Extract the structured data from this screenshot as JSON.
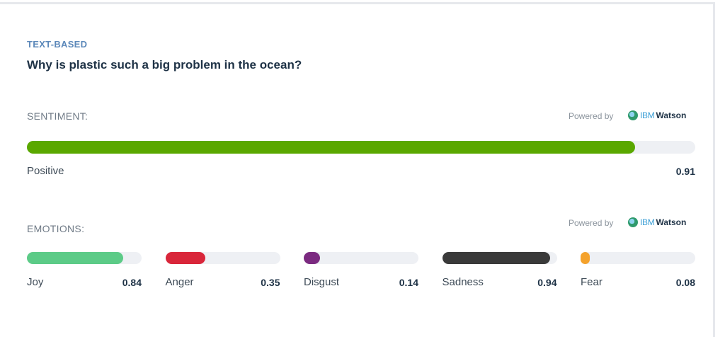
{
  "header": {
    "label": "TEXT-BASED",
    "title": "Why is plastic such a big problem in the ocean?"
  },
  "sentiment": {
    "label": "SENTIMENT:",
    "powered_by": "Powered by",
    "provider_brand": "IBM",
    "provider_name": "Watson",
    "result": "Positive",
    "score": 0.91,
    "color": "#5aa800"
  },
  "emotions": {
    "label": "EMOTIONS:",
    "powered_by": "Powered by",
    "provider_brand": "IBM",
    "provider_name": "Watson",
    "items": [
      {
        "name": "Joy",
        "score": 0.84,
        "color": "#5ccb87"
      },
      {
        "name": "Anger",
        "score": 0.35,
        "color": "#d9263a"
      },
      {
        "name": "Disgust",
        "score": 0.14,
        "color": "#7b2a80"
      },
      {
        "name": "Sadness",
        "score": 0.94,
        "color": "#3a3a3a"
      },
      {
        "name": "Fear",
        "score": 0.08,
        "color": "#f4a22c"
      }
    ]
  }
}
